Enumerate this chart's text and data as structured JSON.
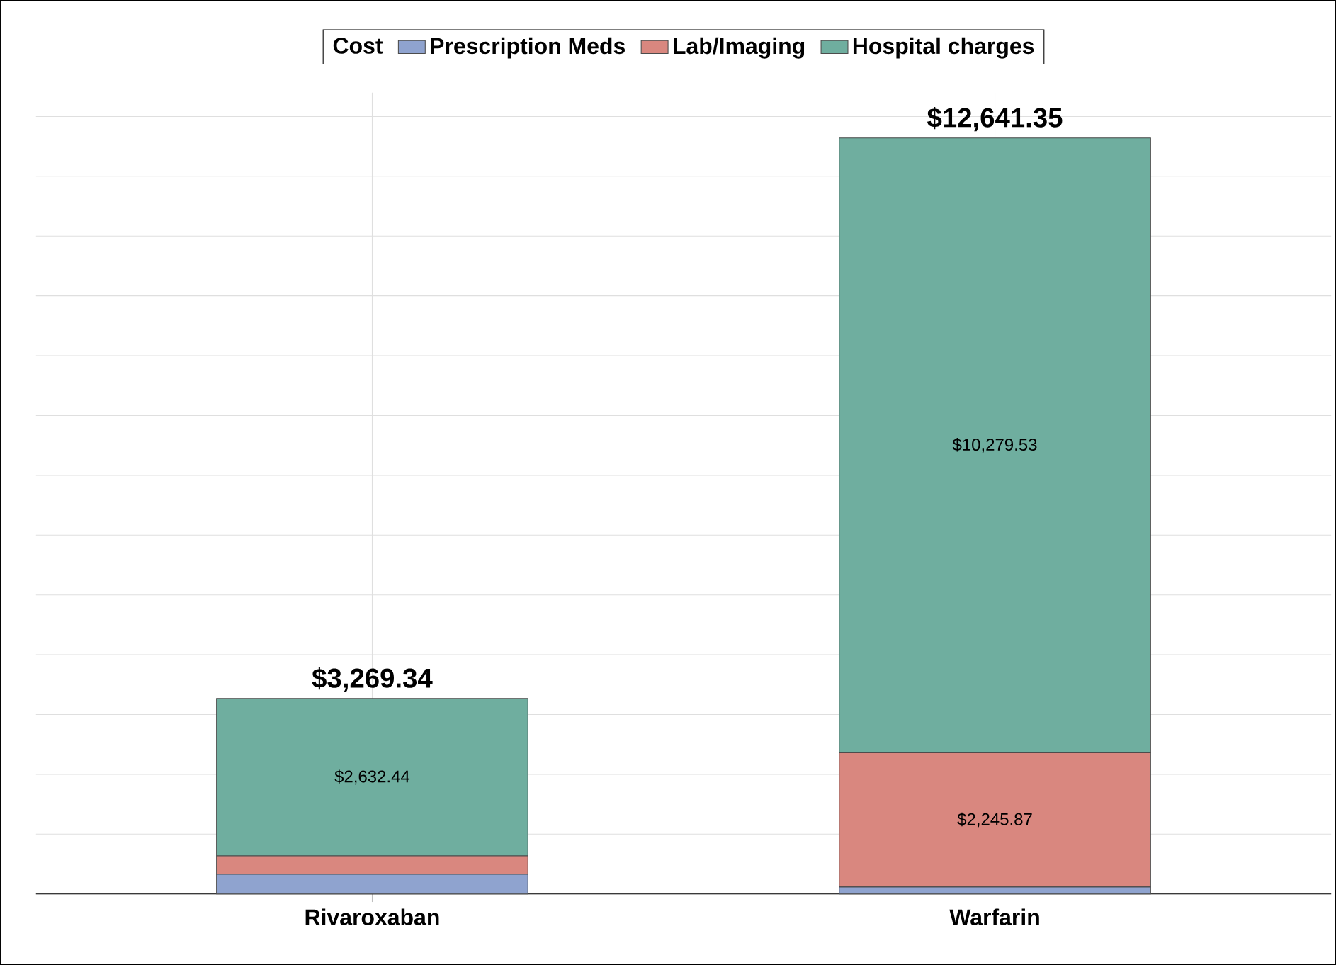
{
  "chart_data": {
    "type": "bar",
    "stacked": true,
    "categories": [
      "Rivaroxaban",
      "Warfarin"
    ],
    "legend_title": "Cost",
    "series": [
      {
        "name": "Prescription Meds",
        "color": "#8fa3cf",
        "values": [
          330,
          115.95
        ],
        "value_labels": [
          null,
          null
        ]
      },
      {
        "name": "Lab/Imaging",
        "color": "#d9877f",
        "values": [
          306.9,
          2245.87
        ],
        "value_labels": [
          null,
          "$2,245.87"
        ]
      },
      {
        "name": "Hospital charges",
        "color": "#6fae9f",
        "values": [
          2632.44,
          10279.53
        ],
        "value_labels": [
          "$2,632.44",
          "$10,279.53"
        ]
      }
    ],
    "totals": [
      "$3,269.34",
      "$12,641.35"
    ],
    "tick_labels": "x",
    "grid": true,
    "legend": "top"
  }
}
